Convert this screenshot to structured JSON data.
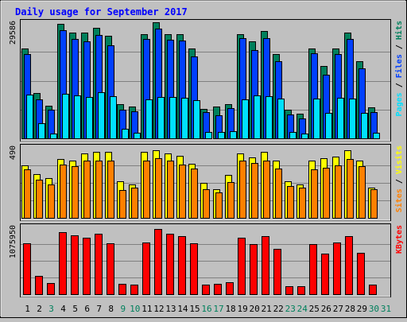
{
  "chart_data": [
    {
      "type": "bar",
      "panel": "hits-files-pages",
      "title": "Daily usage for September 2017",
      "ylabel_parts": [
        {
          "text": "Pages",
          "color": "#00e0ff"
        },
        {
          "text": " / ",
          "color": "#000000"
        },
        {
          "text": "Files",
          "color": "#0040ff"
        },
        {
          "text": " / ",
          "color": "#000000"
        },
        {
          "text": "Hits",
          "color": "#00805c"
        }
      ],
      "ymax_label": "29586",
      "ylim": [
        0,
        29586
      ],
      "grid": true,
      "categories": [
        "1",
        "2",
        "3",
        "4",
        "5",
        "6",
        "7",
        "8",
        "9",
        "10",
        "11",
        "12",
        "13",
        "14",
        "15",
        "16",
        "17",
        "18",
        "19",
        "20",
        "21",
        "22",
        "23",
        "24",
        "25",
        "26",
        "27",
        "28",
        "29",
        "30",
        "31"
      ],
      "series": [
        {
          "name": "Hits",
          "color": "#00805c",
          "values": [
            23150,
            11550,
            8450,
            29350,
            27150,
            27200,
            28400,
            26300,
            8750,
            8150,
            26700,
            29700,
            26700,
            26700,
            23150,
            7650,
            8150,
            8800,
            26700,
            24950,
            27500,
            21550,
            7350,
            6420,
            23150,
            18550,
            23150,
            27200,
            19850,
            7900,
            0
          ]
        },
        {
          "name": "Files",
          "color": "#0040ff",
          "values": [
            21650,
            10000,
            7300,
            27650,
            25500,
            24950,
            26600,
            23800,
            7350,
            6850,
            25500,
            28150,
            25250,
            25000,
            21000,
            6700,
            6000,
            7850,
            25700,
            22650,
            25700,
            19700,
            6120,
            5200,
            21800,
            16350,
            21650,
            25450,
            17950,
            6700,
            0
          ]
        },
        {
          "name": "Pages",
          "color": "#00e0ff",
          "values": [
            11200,
            3950,
            1150,
            11450,
            11000,
            10600,
            11800,
            10800,
            2550,
            1500,
            10100,
            10600,
            10600,
            10400,
            9800,
            1700,
            1700,
            1800,
            10100,
            11000,
            10800,
            10300,
            1600,
            1250,
            10300,
            6600,
            10400,
            10200,
            6600,
            1400,
            0
          ]
        }
      ]
    },
    {
      "type": "bar",
      "panel": "visits-sites",
      "ylabel_parts": [
        {
          "text": "Sites",
          "color": "#ff8000"
        },
        {
          "text": " / ",
          "color": "#000000"
        },
        {
          "text": "Visits",
          "color": "#ffff00"
        }
      ],
      "ymax_label": "490",
      "ylim": [
        0,
        490
      ],
      "grid": true,
      "categories": [
        "1",
        "2",
        "3",
        "4",
        "5",
        "6",
        "7",
        "8",
        "9",
        "10",
        "11",
        "12",
        "13",
        "14",
        "15",
        "16",
        "17",
        "18",
        "19",
        "20",
        "21",
        "22",
        "23",
        "24",
        "25",
        "26",
        "27",
        "28",
        "29",
        "30",
        "31"
      ],
      "series": [
        {
          "name": "Visits",
          "color": "#ffff00",
          "values": [
            370,
            305,
            280,
            410,
            400,
            450,
            460,
            460,
            255,
            235,
            460,
            475,
            450,
            435,
            380,
            245,
            200,
            300,
            450,
            425,
            460,
            400,
            255,
            235,
            400,
            420,
            430,
            475,
            400,
            210,
            0
          ]
        },
        {
          "name": "Sites",
          "color": "#ff8000",
          "values": [
            340,
            270,
            235,
            375,
            360,
            400,
            400,
            400,
            195,
            210,
            400,
            415,
            400,
            375,
            345,
            200,
            180,
            250,
            400,
            385,
            400,
            345,
            220,
            210,
            340,
            350,
            370,
            410,
            360,
            200,
            0
          ]
        }
      ]
    },
    {
      "type": "bar",
      "panel": "kbytes",
      "ylabel_parts": [
        {
          "text": "KBytes",
          "color": "#ff0000"
        }
      ],
      "ymax_label": "1075950",
      "ylim": [
        0,
        1075950
      ],
      "grid": true,
      "categories": [
        "1",
        "2",
        "3",
        "4",
        "5",
        "6",
        "7",
        "8",
        "9",
        "10",
        "11",
        "12",
        "13",
        "14",
        "15",
        "16",
        "17",
        "18",
        "19",
        "20",
        "21",
        "22",
        "23",
        "24",
        "25",
        "26",
        "27",
        "28",
        "29",
        "30",
        "31"
      ],
      "series": [
        {
          "name": "KBytes",
          "color": "#ff0000",
          "values": [
            820000,
            298000,
            176000,
            1000000,
            950000,
            915000,
            970000,
            822000,
            170000,
            150000,
            830000,
            1055000,
            971000,
            935000,
            822000,
            160000,
            170000,
            190000,
            910000,
            810000,
            940000,
            735000,
            130000,
            130000,
            805000,
            650000,
            830000,
            935000,
            660000,
            150000,
            0
          ]
        }
      ]
    }
  ],
  "weekend_days": [
    "3",
    "9",
    "10",
    "16",
    "17",
    "23",
    "24",
    "30",
    "31"
  ],
  "colors": {
    "background": "#c0c0c0",
    "panel_bg": "#c0c0c0",
    "grid": "#808080",
    "title": "#0000ff",
    "weekday_label": "#000000",
    "weekend_label": "#00805c"
  }
}
